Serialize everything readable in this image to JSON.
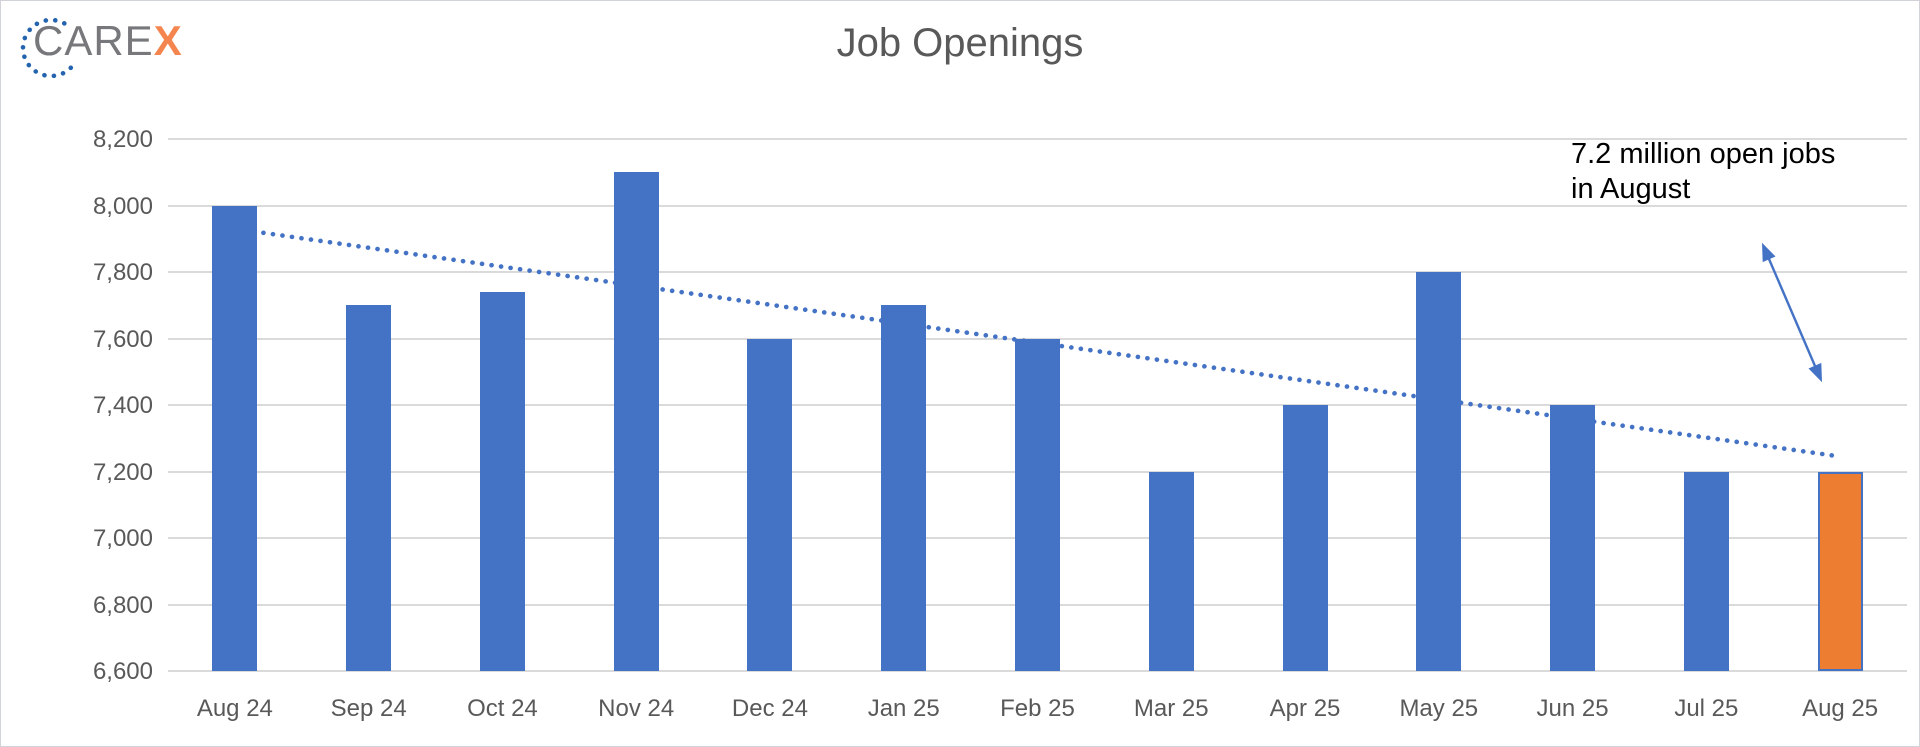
{
  "logo": {
    "text_primary": "CARE",
    "text_accent": "X",
    "ring_color": "#2463ae",
    "text_color": "#77787b",
    "accent_color": "#f5854f"
  },
  "header": {
    "title": "Job Openings"
  },
  "annotation": {
    "line1": "7.2 million open jobs",
    "line2": "in August"
  },
  "chart_data": {
    "type": "bar",
    "title": "Job Openings",
    "categories": [
      "Aug 24",
      "Sep 24",
      "Oct 24",
      "Nov 24",
      "Dec 24",
      "Jan 25",
      "Feb 25",
      "Mar 25",
      "Apr 25",
      "May 25",
      "Jun 25",
      "Jul 25",
      "Aug 25"
    ],
    "values": [
      8000,
      7700,
      7740,
      8100,
      7600,
      7700,
      7600,
      7200,
      7400,
      7800,
      7400,
      7200,
      7200
    ],
    "units": "thousands of jobs",
    "highlight_index": 12,
    "xlabel": "",
    "ylabel": "",
    "ylim": [
      6600,
      8200
    ],
    "ytick_step": 200,
    "grid": true,
    "legend": false,
    "trendline": {
      "type": "linear",
      "style": "dotted",
      "start_value": 7930,
      "end_value": 7245
    },
    "colors": {
      "bar": "#4472c4",
      "highlight_bar": "#ed7d31",
      "highlight_border": "#4472c4",
      "trendline": "#4472c4",
      "gridline": "#dadada",
      "axis_text": "#595959",
      "title_text": "#595959",
      "annotation_text": "#000000",
      "annotation_arrow": "#4472c4"
    }
  }
}
